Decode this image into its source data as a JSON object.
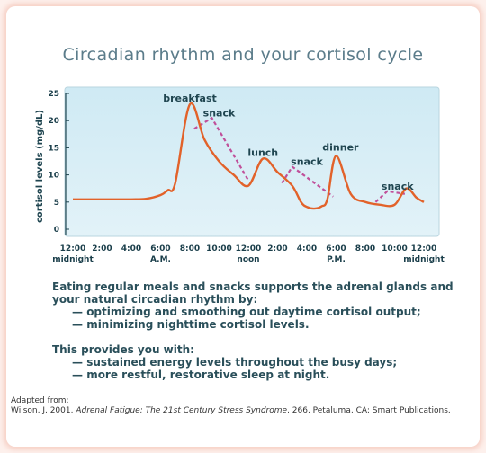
{
  "title": "Circadian rhythm and your cortisol cycle",
  "chart_data": {
    "type": "line",
    "title": "Circadian rhythm and your cortisol cycle",
    "ylabel": "cortisol levels (mg/dL)",
    "ylim": [
      0,
      25
    ],
    "xlim": [
      0,
      24
    ],
    "y_ticks": [
      "25",
      "20",
      "15",
      "10",
      "5",
      "0"
    ],
    "x_ticks": [
      "12:00",
      "2:00",
      "4:00",
      "6:00",
      "8:00",
      "10:00",
      "12:00",
      "2:00",
      "4:00",
      "6:00",
      "8:00",
      "10:00",
      "12:00"
    ],
    "x_subticks": [
      "midnight",
      "A.M.",
      "noon",
      "P.M.",
      "midnight"
    ],
    "series": [
      {
        "name": "",
        "color": "#e2622a",
        "x": [
          0,
          2,
          4,
          5,
          6,
          6.5,
          7,
          8,
          9,
          10,
          11,
          12,
          13,
          14,
          15,
          15.6,
          16,
          16.5,
          17,
          17.4,
          18,
          19,
          20,
          21,
          22,
          22.8,
          23.5,
          24
        ],
        "y": [
          5.5,
          5.5,
          5.5,
          5.6,
          6.3,
          7.2,
          8.5,
          23,
          16.5,
          12.5,
          10,
          8,
          13,
          10.5,
          8,
          5,
          4.1,
          3.8,
          4.2,
          5.5,
          13.5,
          6.5,
          5,
          4.5,
          4.5,
          7.5,
          5.8,
          5
        ]
      },
      {
        "name": "",
        "color": "#c0509a",
        "dashed": true,
        "segments": [
          {
            "x": [
              8.3,
              9.5,
              12
            ],
            "y": [
              18.5,
              20.5,
              9
            ]
          },
          {
            "x": [
              14.3,
              15,
              17.8
            ],
            "y": [
              8.5,
              11.5,
              6
            ]
          },
          {
            "x": [
              20.7,
              21.5,
              22.7
            ],
            "y": [
              5,
              7,
              6.5
            ]
          }
        ]
      }
    ],
    "annotations": [
      {
        "text": "breakfast",
        "x": 8,
        "y": 23.5
      },
      {
        "text": "snack",
        "x": 10,
        "y": 20.8
      },
      {
        "text": "lunch",
        "x": 13,
        "y": 13.5
      },
      {
        "text": "snack",
        "x": 16,
        "y": 11.8
      },
      {
        "text": "dinner",
        "x": 18.3,
        "y": 14.5
      },
      {
        "text": "snack",
        "x": 22.2,
        "y": 7.3
      }
    ],
    "grid": false
  },
  "body": {
    "intro": "Eating regular meals and snacks supports the adrenal glands and your natural circadian rhythm by:",
    "benefits": [
      "optimizing and smoothing out daytime cortisol output;",
      "minimizing nighttime cortisol levels."
    ],
    "provides": "This provides you with:",
    "results": [
      "sustained energy levels throughout the busy days;",
      "more restful, restorative sleep at night."
    ]
  },
  "credit": {
    "line1": "Adapted from:",
    "author": "Wilson, J. 2001. ",
    "book": "Adrenal Fatigue: The 21st Century Stress Syndrome",
    "rest": ", 266. Petaluma, CA: Smart Publications."
  }
}
